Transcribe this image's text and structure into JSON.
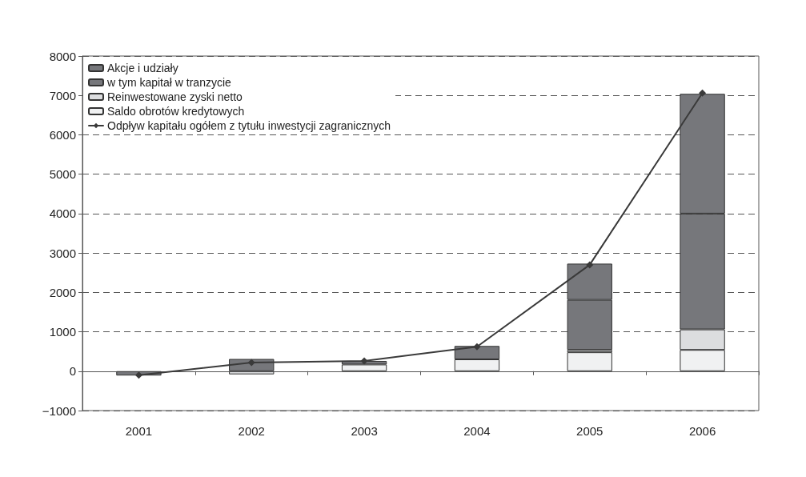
{
  "chart_data": {
    "type": "bar",
    "stacked": true,
    "categories": [
      "2001",
      "2002",
      "2003",
      "2004",
      "2005",
      "2006"
    ],
    "series": [
      {
        "name": "Saldo obrotów kredytowych",
        "color": "#f0f1f2",
        "values": [
          null,
          null,
          170,
          300,
          480,
          540
        ]
      },
      {
        "name": "Reinwestowane zyski netto",
        "color": "#dcdddf",
        "values": [
          null,
          -80,
          null,
          null,
          60,
          520
        ]
      },
      {
        "name": "w tym kapitał w tranzycie",
        "color": "#76777b",
        "values": [
          null,
          null,
          null,
          null,
          1270,
          2940
        ]
      },
      {
        "name": "Akcje i udziały",
        "color": "#76777b",
        "values": [
          -110,
          310,
          90,
          340,
          920,
          3040
        ]
      },
      {
        "name": "Odpływ kapitału ogółem z tytułu inwestycji zagranicznych",
        "type": "line",
        "color": "#3a3a3a",
        "marker": "diamond",
        "values": [
          -100,
          220,
          260,
          620,
          2700,
          7060
        ]
      }
    ],
    "ylim": [
      -1000,
      8000
    ],
    "yticks": [
      -1000,
      0,
      1000,
      2000,
      3000,
      4000,
      5000,
      6000,
      7000,
      8000
    ],
    "grid": "y",
    "legend": "top left"
  }
}
